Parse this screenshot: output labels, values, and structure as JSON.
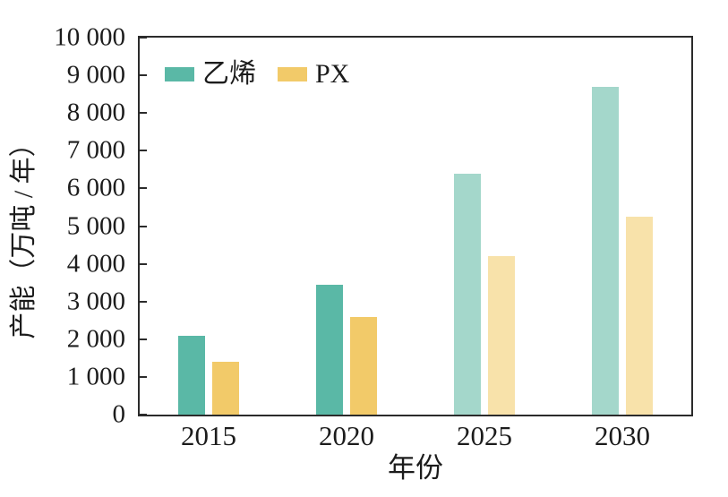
{
  "chart_data": {
    "type": "bar",
    "title": "",
    "xlabel": "年份",
    "ylabel": "产能（万吨 / 年）",
    "categories": [
      "2015",
      "2020",
      "2025",
      "2030"
    ],
    "series": [
      {
        "name": "乙烯",
        "values": [
          2100,
          3450,
          6400,
          8700
        ],
        "color": "#5ab8a6",
        "color_light": "#a4d7cb"
      },
      {
        "name": "PX",
        "values": [
          1400,
          2600,
          4200,
          5250
        ],
        "color": "#f2ca69",
        "color_light": "#f8e2aa"
      }
    ],
    "light_categories": [
      "2025",
      "2030"
    ],
    "ylim": [
      0,
      10000
    ],
    "ytick_step": 1000,
    "ytick_labels": [
      "0",
      "1 000",
      "2 000",
      "3 000",
      "4 000",
      "5 000",
      "6 000",
      "7 000",
      "8 000",
      "9 000",
      "10 000"
    ],
    "legend_position": "top-left-inside",
    "grid": false,
    "frame_color": "#2b2b2b",
    "text_color": "#1c1c1c"
  }
}
